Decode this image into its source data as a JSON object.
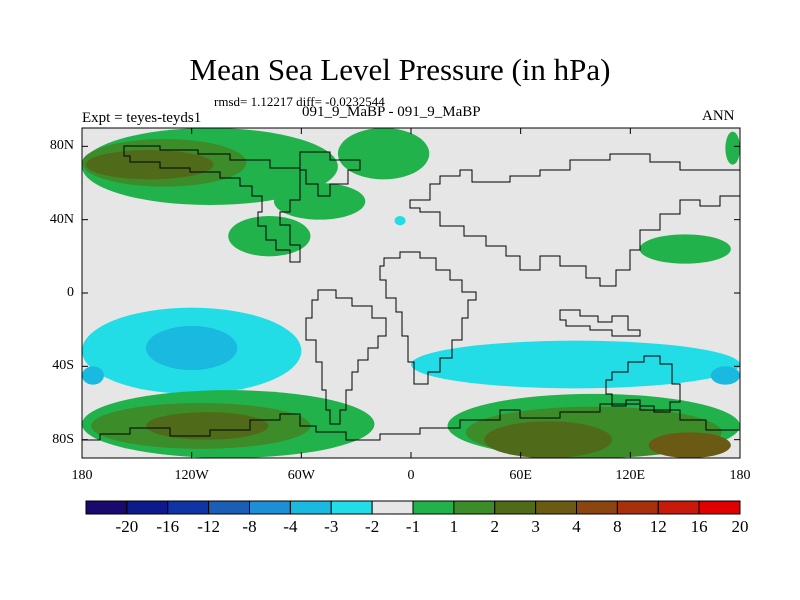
{
  "chart_data": {
    "type": "contour-map",
    "title": "Mean Sea Level Pressure (in hPa)",
    "stats_label": "rmsd= 1.12217 diff= -0.0232544",
    "left_label": "Expt = teyes-teyds1",
    "subtitle": "091_9_MaBP - 091_9_MaBP",
    "right_label": "ANN",
    "x_axis": {
      "range": [
        -180,
        180
      ],
      "ticks": [
        {
          "value": -180,
          "label": "180"
        },
        {
          "value": -120,
          "label": "120W"
        },
        {
          "value": -60,
          "label": "60W"
        },
        {
          "value": 0,
          "label": "0"
        },
        {
          "value": 60,
          "label": "60E"
        },
        {
          "value": 120,
          "label": "120E"
        },
        {
          "value": 180,
          "label": "180"
        }
      ]
    },
    "y_axis": {
      "range": [
        -90,
        90
      ],
      "ticks": [
        {
          "value": 80,
          "label": "80N"
        },
        {
          "value": 40,
          "label": "40N"
        },
        {
          "value": 0,
          "label": "0"
        },
        {
          "value": -40,
          "label": "40S"
        },
        {
          "value": -80,
          "label": "80S"
        }
      ]
    },
    "colorbar": {
      "colors": [
        "#1a0a6e",
        "#0d1a8c",
        "#1034a6",
        "#1a5fb4",
        "#1e8fd6",
        "#19b9e0",
        "#22dde6",
        "#e6e6e6",
        "#22b24c",
        "#3d8c2a",
        "#4f6b1a",
        "#6b5a14",
        "#8a4510",
        "#a8300c",
        "#c81a0a",
        "#e00000"
      ],
      "labels": [
        "-20",
        "-16",
        "-12",
        "-8",
        "-4",
        "-3",
        "-2",
        "-1",
        "1",
        "2",
        "3",
        "4",
        "8",
        "12",
        "16",
        "20"
      ]
    },
    "regions": [
      {
        "level": "2",
        "color": "#22b24c",
        "lat": [
          48,
          90
        ],
        "lon": [
          -180,
          -40
        ]
      },
      {
        "level": "3",
        "color": "#3d8c2a",
        "lat": [
          58,
          84
        ],
        "lon": [
          -180,
          -90
        ]
      },
      {
        "level": "4",
        "color": "#4f6b1a",
        "lat": [
          62,
          78
        ],
        "lon": [
          -178,
          -108
        ]
      },
      {
        "level": "2",
        "color": "#22b24c",
        "lat": [
          62,
          90
        ],
        "lon": [
          -40,
          10
        ]
      },
      {
        "level": "2",
        "color": "#22b24c",
        "lat": [
          40,
          60
        ],
        "lon": [
          -75,
          -25
        ]
      },
      {
        "level": "2",
        "color": "#22b24c",
        "lat": [
          20,
          42
        ],
        "lon": [
          -100,
          -55
        ]
      },
      {
        "level": "2",
        "color": "#22b24c",
        "lat": [
          16,
          32
        ],
        "lon": [
          125,
          175
        ]
      },
      {
        "level": "2",
        "color": "#22b24c",
        "lat": [
          70,
          88
        ],
        "lon": [
          172,
          180
        ]
      },
      {
        "level": "-1",
        "color": "#22dde6",
        "lat": [
          -55,
          -8
        ],
        "lon": [
          -180,
          -60
        ]
      },
      {
        "level": "-2",
        "color": "#19b9e0",
        "lat": [
          -42,
          -18
        ],
        "lon": [
          -145,
          -95
        ]
      },
      {
        "level": "-1",
        "color": "#22dde6",
        "lat": [
          -52,
          -26
        ],
        "lon": [
          0,
          180
        ]
      },
      {
        "level": "-2",
        "color": "#19b9e0",
        "lat": [
          -50,
          -40
        ],
        "lon": [
          -180,
          -168
        ]
      },
      {
        "level": "-2",
        "color": "#19b9e0",
        "lat": [
          -50,
          -40
        ],
        "lon": [
          164,
          180
        ]
      },
      {
        "level": "2",
        "color": "#22b24c",
        "lat": [
          -90,
          -53
        ],
        "lon": [
          -180,
          -20
        ]
      },
      {
        "level": "3",
        "color": "#3d8c2a",
        "lat": [
          -85,
          -60
        ],
        "lon": [
          -175,
          -55
        ]
      },
      {
        "level": "4",
        "color": "#4f6b1a",
        "lat": [
          -80,
          -65
        ],
        "lon": [
          -145,
          -78
        ]
      },
      {
        "level": "2",
        "color": "#22b24c",
        "lat": [
          -90,
          -55
        ],
        "lon": [
          20,
          180
        ]
      },
      {
        "level": "3",
        "color": "#3d8c2a",
        "lat": [
          -90,
          -62
        ],
        "lon": [
          30,
          170
        ]
      },
      {
        "level": "4",
        "color": "#4f6b1a",
        "lat": [
          -90,
          -70
        ],
        "lon": [
          40,
          110
        ]
      },
      {
        "level": "8",
        "color": "#6b5a14",
        "lat": [
          -90,
          -76
        ],
        "lon": [
          130,
          175
        ]
      },
      {
        "level": "-1",
        "color": "#22dde6",
        "lat": [
          37,
          42
        ],
        "lon": [
          -9,
          -3
        ]
      }
    ]
  }
}
